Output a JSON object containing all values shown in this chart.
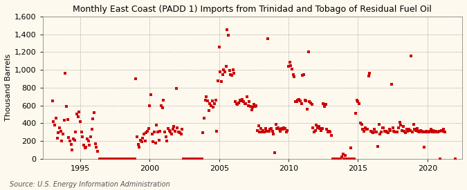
{
  "title": "Monthly East Coast (PADD 1) Imports from Trinidad and Tobago of Residual Fuel Oil",
  "ylabel": "Thousand Barrels",
  "source_text": "Source: U.S. Energy Information Administration",
  "bg_color": "#fef9ee",
  "plot_bg_color": "#fef9ee",
  "marker_color": "#cc0000",
  "marker_size": 5,
  "ylim": [
    0,
    1600
  ],
  "yticks": [
    0,
    200,
    400,
    600,
    800,
    1000,
    1200,
    1400,
    1600
  ],
  "xlim_start": 1992.3,
  "xlim_end": 2022.5,
  "xticks": [
    1995,
    2000,
    2005,
    2010,
    2015,
    2020
  ],
  "data": {
    "1993-01": 650,
    "1993-02": 420,
    "1993-03": 380,
    "1993-04": 460,
    "1993-05": 230,
    "1993-06": 290,
    "1993-07": 350,
    "1993-08": 310,
    "1993-09": 200,
    "1993-10": 280,
    "1993-11": 430,
    "1993-12": 960,
    "1994-01": 590,
    "1994-02": 440,
    "1994-03": 240,
    "1994-04": 200,
    "1994-05": 160,
    "1994-06": 100,
    "1994-07": 220,
    "1994-08": 210,
    "1994-09": 300,
    "1994-10": 500,
    "1994-11": 470,
    "1994-12": 530,
    "1995-01": 420,
    "1995-02": 300,
    "1995-03": 250,
    "1995-04": 150,
    "1995-05": 120,
    "1995-06": 130,
    "1995-07": 220,
    "1995-08": 200,
    "1995-09": 150,
    "1995-10": 250,
    "1995-11": 330,
    "1995-12": 450,
    "1996-01": 520,
    "1996-02": 170,
    "1996-03": 130,
    "1996-04": 80,
    "1996-06": 0,
    "1996-07": 0,
    "1996-08": 0,
    "1996-09": 0,
    "1996-10": 0,
    "1996-11": 0,
    "1996-12": 0,
    "1997-01": 0,
    "1997-02": 0,
    "1997-03": 0,
    "1997-04": 0,
    "1997-05": 0,
    "1997-06": 0,
    "1997-07": 0,
    "1997-08": 0,
    "1997-09": 0,
    "1997-10": 0,
    "1997-11": 0,
    "1997-12": 0,
    "1998-01": 0,
    "1998-02": 0,
    "1998-03": 0,
    "1998-04": 0,
    "1998-05": 0,
    "1998-06": 0,
    "1998-07": 0,
    "1998-08": 0,
    "1998-09": 0,
    "1998-10": 0,
    "1998-11": 0,
    "1998-12": 0,
    "1999-01": 900,
    "1999-02": 250,
    "1999-03": 160,
    "1999-04": 130,
    "1999-05": 210,
    "1999-06": 190,
    "1999-07": 230,
    "1999-08": 280,
    "1999-09": 200,
    "1999-10": 290,
    "1999-11": 310,
    "1999-12": 340,
    "2000-01": 600,
    "2000-02": 720,
    "2000-03": 280,
    "2000-04": 190,
    "2000-05": 300,
    "2000-06": 180,
    "2000-07": 380,
    "2000-08": 300,
    "2000-09": 210,
    "2000-10": 310,
    "2000-11": 600,
    "2000-12": 570,
    "2001-01": 660,
    "2001-02": 300,
    "2001-03": 250,
    "2001-04": 200,
    "2001-05": 340,
    "2001-06": 320,
    "2001-07": 300,
    "2001-08": 280,
    "2001-09": 330,
    "2001-10": 360,
    "2001-11": 310,
    "2001-12": 790,
    "2002-01": 350,
    "2002-02": 300,
    "2002-03": 290,
    "2002-04": 280,
    "2002-05": 330,
    "2002-06": 0,
    "2002-07": 0,
    "2002-08": 0,
    "2002-09": 0,
    "2002-10": 0,
    "2002-11": 0,
    "2002-12": 0,
    "2003-01": 0,
    "2003-02": 0,
    "2003-03": 0,
    "2003-04": 0,
    "2003-05": 0,
    "2003-06": 0,
    "2003-07": 0,
    "2003-08": 0,
    "2003-09": 0,
    "2003-10": 0,
    "2003-11": 290,
    "2003-12": 460,
    "2004-01": 660,
    "2004-02": 700,
    "2004-03": 650,
    "2004-04": 540,
    "2004-05": 620,
    "2004-06": 600,
    "2004-07": 650,
    "2004-08": 580,
    "2004-09": 620,
    "2004-10": 660,
    "2004-11": 310,
    "2004-12": 880,
    "2005-01": 1260,
    "2005-02": 980,
    "2005-03": 870,
    "2005-04": 950,
    "2005-05": 1000,
    "2005-06": 980,
    "2005-07": 1040,
    "2005-08": 1450,
    "2005-09": 1390,
    "2005-10": 990,
    "2005-11": 950,
    "2005-12": 940,
    "2006-01": 1000,
    "2006-02": 960,
    "2006-03": 640,
    "2006-04": 620,
    "2006-05": 610,
    "2006-06": 630,
    "2006-07": 660,
    "2006-08": 650,
    "2006-09": 670,
    "2006-10": 640,
    "2006-11": 620,
    "2006-12": 620,
    "2007-01": 700,
    "2007-02": 600,
    "2007-03": 640,
    "2007-04": 590,
    "2007-05": 550,
    "2007-06": 580,
    "2007-07": 610,
    "2007-08": 590,
    "2007-09": 600,
    "2007-10": 320,
    "2007-11": 370,
    "2007-12": 300,
    "2008-01": 340,
    "2008-02": 300,
    "2008-03": 320,
    "2008-04": 300,
    "2008-05": 340,
    "2008-06": 310,
    "2008-07": 1350,
    "2008-08": 310,
    "2008-09": 330,
    "2008-10": 340,
    "2008-11": 310,
    "2008-12": 280,
    "2009-01": 70,
    "2009-02": 390,
    "2009-03": 340,
    "2009-04": 350,
    "2009-05": 330,
    "2009-06": 310,
    "2009-07": 340,
    "2009-08": 330,
    "2009-09": 350,
    "2009-10": 340,
    "2009-11": 300,
    "2009-12": 320,
    "2010-01": 1040,
    "2010-02": 1090,
    "2010-03": 1050,
    "2010-04": 1010,
    "2010-05": 950,
    "2010-06": 920,
    "2010-07": 640,
    "2010-08": 640,
    "2010-09": 660,
    "2010-10": 670,
    "2010-11": 650,
    "2010-12": 620,
    "2011-01": 940,
    "2011-02": 950,
    "2011-03": 660,
    "2011-04": 650,
    "2011-05": 560,
    "2011-06": 1200,
    "2011-07": 640,
    "2011-08": 630,
    "2011-09": 610,
    "2011-10": 350,
    "2011-11": 300,
    "2011-12": 320,
    "2012-01": 380,
    "2012-02": 350,
    "2012-03": 360,
    "2012-04": 340,
    "2012-05": 320,
    "2012-06": 340,
    "2012-07": 620,
    "2012-08": 590,
    "2012-09": 610,
    "2012-10": 330,
    "2012-11": 300,
    "2012-12": 310,
    "2013-01": 300,
    "2013-02": 260,
    "2013-03": 0,
    "2013-04": 0,
    "2013-05": 0,
    "2013-06": 0,
    "2013-07": 0,
    "2013-08": 0,
    "2013-09": 0,
    "2013-10": 0,
    "2013-11": 20,
    "2013-12": 50,
    "2014-01": 0,
    "2014-02": 40,
    "2014-03": 0,
    "2014-04": 0,
    "2014-05": 0,
    "2014-06": 0,
    "2014-07": 120,
    "2014-08": 0,
    "2014-09": 0,
    "2014-10": 0,
    "2014-11": 510,
    "2014-12": 660,
    "2015-01": 640,
    "2015-02": 620,
    "2015-03": 400,
    "2015-04": 390,
    "2015-05": 330,
    "2015-06": 310,
    "2015-07": 350,
    "2015-08": 330,
    "2015-09": 330,
    "2015-10": 930,
    "2015-11": 960,
    "2015-12": 310,
    "2016-01": 300,
    "2016-02": 290,
    "2016-03": 330,
    "2016-04": 300,
    "2016-05": 300,
    "2016-06": 140,
    "2016-07": 390,
    "2016-08": 280,
    "2016-09": 300,
    "2016-10": 350,
    "2016-11": 350,
    "2016-12": 310,
    "2017-01": 310,
    "2017-02": 300,
    "2017-03": 290,
    "2017-04": 330,
    "2017-05": 320,
    "2017-06": 840,
    "2017-07": 350,
    "2017-08": 310,
    "2017-09": 300,
    "2017-10": 300,
    "2017-11": 300,
    "2017-12": 350,
    "2018-01": 410,
    "2018-02": 380,
    "2018-03": 320,
    "2018-04": 360,
    "2018-05": 310,
    "2018-06": 290,
    "2018-07": 330,
    "2018-08": 310,
    "2018-09": 330,
    "2018-10": 320,
    "2018-11": 1160,
    "2018-12": 300,
    "2019-01": 390,
    "2019-02": 330,
    "2019-03": 320,
    "2019-04": 340,
    "2019-05": 310,
    "2019-06": 300,
    "2019-07": 320,
    "2019-08": 310,
    "2019-09": 300,
    "2019-10": 130,
    "2019-11": 300,
    "2019-12": 310,
    "2020-01": 300,
    "2020-02": 300,
    "2020-03": 310,
    "2020-04": 330,
    "2020-05": 300,
    "2020-06": 320,
    "2020-07": 300,
    "2020-08": 310,
    "2020-09": 300,
    "2020-10": 300,
    "2020-11": 310,
    "2020-12": 0,
    "2021-01": 320,
    "2021-02": 310,
    "2021-03": 330,
    "2021-04": 300,
    "2022-01": 0
  }
}
